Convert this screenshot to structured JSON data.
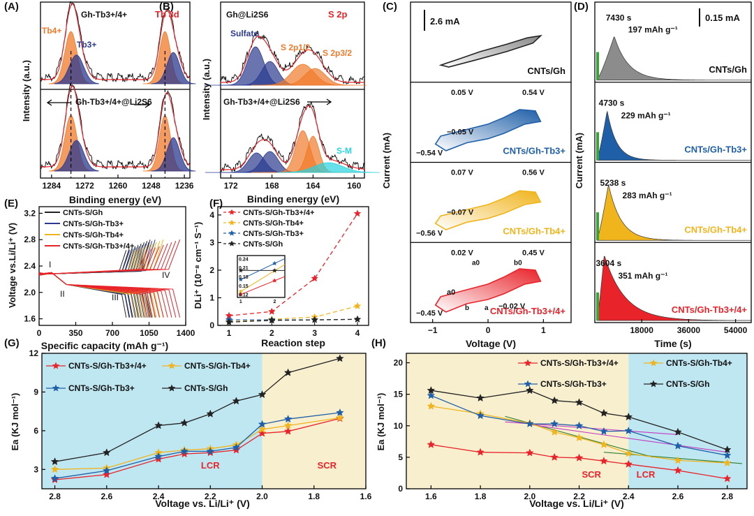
{
  "colors": {
    "red": "#e8232a",
    "blue": "#1f5fa8",
    "navy": "#2b3a8f",
    "gold": "#f0b41c",
    "black": "#222222",
    "orange": "#f07a2a",
    "cyan": "#27d3e0",
    "lcr": "#bfe7f1",
    "scr": "#f8efcf",
    "green": "#3aa33a"
  },
  "chart_data": [
    {
      "panel": "A",
      "type": "line",
      "title": "Tb 3d",
      "top_label": "Gh-Tb3+/4+",
      "bottom_label": "Gh-Tb3+/4+@Li2S6",
      "peak_labels": [
        "Tb4+",
        "Tb3+"
      ],
      "xlabel": "Binding energy  (eV)",
      "ylabel": "Intensity (a.u.)",
      "xlim": [
        1288,
        1234
      ],
      "xticks": [
        "1284",
        "1272",
        "1260",
        "1248",
        "1236"
      ],
      "xtick_values": [
        1284,
        1272,
        1260,
        1248,
        1236
      ]
    },
    {
      "panel": "B",
      "type": "line",
      "title": "S 2p",
      "top_label": "Gh@Li2S6",
      "bottom_label": "Gh-Tb3+/4+@Li2S6",
      "peak_labels": [
        "Sulfate",
        "S 2p1/2",
        "S 2p3/2",
        "S-M"
      ],
      "xlabel": "Binding energy (eV)",
      "ylabel": "Intensity (a.u.)",
      "xlim": [
        173,
        159
      ],
      "xticks": [
        "172",
        "168",
        "164",
        "160"
      ],
      "xtick_values": [
        172,
        168,
        164,
        160
      ]
    },
    {
      "panel": "C",
      "type": "line",
      "scale": "2.6 mA",
      "xlabel": "Voltage (V)",
      "ylabel": "Current (mA)",
      "xlim": [
        -1.4,
        1.5
      ],
      "xticks": [
        "−1",
        "0",
        "1"
      ],
      "xtick_values": [
        -1,
        0,
        1
      ],
      "subpanels": [
        {
          "name": "CNTs/Gh",
          "annotations": []
        },
        {
          "name": "CNTs/Gh-Tb3+",
          "annotations": [
            "0.05 V",
            "0.54 V",
            "−0.05 V",
            "−0.54 V"
          ]
        },
        {
          "name": "CNTs/Gh-Tb4+",
          "annotations": [
            "0.07 V",
            "0.56 V",
            "−0.07 V",
            "−0.56 V"
          ]
        },
        {
          "name": "CNTs/Gh-Tb3+/4+",
          "annotations": [
            "0.02 V",
            "0.45 V",
            "a0",
            "b0",
            "b",
            "a",
            "−0.02 V",
            "−0.45 V"
          ]
        }
      ]
    },
    {
      "panel": "D",
      "type": "area",
      "scale": "0.15 mA",
      "xlabel": "Time (s)",
      "ylabel": "Current (mA)",
      "xlim": [
        0,
        60000
      ],
      "xticks": [
        "18000",
        "36000",
        "54000"
      ],
      "xtick_values": [
        18000,
        36000,
        54000
      ],
      "subpanels": [
        {
          "name": "CNTs/Gh",
          "peak_time": "7430 s",
          "capacity": "197 mAh g⁻¹",
          "peak_s": 7430,
          "rel_height": 0.55,
          "width": 0.09
        },
        {
          "name": "CNTs/Gh-Tb3+",
          "peak_time": "4730 s",
          "capacity": "229 mAh g⁻¹",
          "peak_s": 4730,
          "rel_height": 0.62,
          "width": 0.06
        },
        {
          "name": "CNTs/Gh-Tb4+",
          "peak_time": "5238 s",
          "capacity": "283 mAh g⁻¹",
          "peak_s": 5238,
          "rel_height": 0.7,
          "width": 0.08
        },
        {
          "name": "CNTs/Gh-Tb3+/4+",
          "peak_time": "3604 s",
          "capacity": "351 mAh g⁻¹",
          "peak_s": 3604,
          "rel_height": 0.82,
          "width": 0.13
        }
      ]
    },
    {
      "panel": "E",
      "type": "line",
      "xlabel": "Specific capacity (mAh g⁻¹)",
      "ylabel": "Voltage vs.Li/Li⁺ (V)",
      "xlim": [
        0,
        1400
      ],
      "ylim": [
        1.5,
        3.3
      ],
      "xticks": [
        "0",
        "350",
        "700",
        "1050",
        "1400"
      ],
      "xtick_values": [
        0,
        350,
        700,
        1050,
        1400
      ],
      "yticks": [
        "1.6",
        "2.0",
        "2.4",
        "2.8",
        "3.2"
      ],
      "ytick_values": [
        1.6,
        2.0,
        2.4,
        2.8,
        3.2
      ],
      "region_labels": [
        "I",
        "II",
        "III",
        "IV"
      ],
      "series": [
        {
          "name": "CNTs-S/Gh",
          "cap": 1060
        },
        {
          "name": "CNTs-S/Gh-Tb3+",
          "cap": 1110
        },
        {
          "name": "CNTs-S/Gh-Tb4+",
          "cap": 1190
        },
        {
          "name": "CNTs-S/Gh-Tb3+/4+",
          "cap": 1350
        }
      ]
    },
    {
      "panel": "F",
      "type": "line",
      "xlabel": "Reaction step",
      "ylabel": "DLi⁺ (10⁻⁸ cm⁻¹ S⁻¹)",
      "categories": [
        "1",
        "2",
        "3",
        "4"
      ],
      "ylim": [
        0,
        4.3
      ],
      "yticks": [
        "0",
        "1",
        "2",
        "3",
        "4"
      ],
      "ytick_values": [
        0,
        1,
        2,
        3,
        4
      ],
      "series": [
        {
          "name": "CNTs-S/Gh-Tb3+/4+",
          "values": [
            0.35,
            0.5,
            1.7,
            4.05
          ]
        },
        {
          "name": "CNTs-S/Gh-Tb4+",
          "values": [
            0.13,
            0.22,
            0.3,
            0.7
          ]
        },
        {
          "name": "CNTs-S/Gh-Tb3+",
          "values": [
            0.2,
            0.2,
            0.2,
            0.22
          ]
        },
        {
          "name": "CNTs-S/Gh",
          "values": [
            0.12,
            0.18,
            0.2,
            0.22
          ]
        }
      ],
      "inset": {
        "yticks": [
          "0.12",
          "0.15",
          "0.18",
          "0.21",
          "0.24"
        ],
        "ytick_values": [
          0.12,
          0.15,
          0.18,
          0.21,
          0.24
        ],
        "xticks": [
          "1",
          "2"
        ],
        "xtick_values": [
          1,
          2
        ]
      }
    },
    {
      "panel": "G",
      "type": "line",
      "xlabel": "Voltage vs. Li/Li⁺ (V)",
      "ylabel": "Ea (KJ mol⁻¹)",
      "xlim": [
        2.85,
        1.6
      ],
      "ylim": [
        1.5,
        12
      ],
      "xticks": [
        "2.8",
        "2.6",
        "2.4",
        "2.2",
        "2.0",
        "1.8",
        "1.6"
      ],
      "xtick_values": [
        2.8,
        2.6,
        2.4,
        2.2,
        2.0,
        1.8,
        1.6
      ],
      "yticks": [
        "3",
        "6",
        "9",
        "12"
      ],
      "ytick_values": [
        3,
        6,
        9,
        12
      ],
      "regions": [
        {
          "label": "LCR"
        },
        {
          "label": "SCR"
        }
      ],
      "x": [
        2.8,
        2.6,
        2.4,
        2.3,
        2.2,
        2.1,
        2.0,
        1.9,
        1.7
      ],
      "series": [
        {
          "name": "CNTs-S/Gh-Tb3+/4+",
          "values": [
            2.2,
            2.6,
            3.8,
            4.2,
            4.3,
            4.5,
            5.8,
            5.95,
            6.95
          ]
        },
        {
          "name": "CNTs-S/Gh-Tb4+",
          "values": [
            3.0,
            3.1,
            4.3,
            4.5,
            4.6,
            4.9,
            6.1,
            6.4,
            7.0
          ]
        },
        {
          "name": "CNTs-S/Gh-Tb3+",
          "values": [
            2.3,
            2.9,
            4.0,
            4.4,
            4.4,
            4.7,
            6.5,
            6.9,
            7.4
          ]
        },
        {
          "name": "CNTs-S/Gh",
          "values": [
            3.6,
            4.3,
            6.4,
            6.6,
            7.3,
            8.3,
            8.8,
            10.5,
            11.6
          ]
        }
      ]
    },
    {
      "panel": "H",
      "type": "line",
      "xlabel": "Voltage vs. Li/Li⁺ (V)",
      "ylabel": "Ea (KJ mol⁻¹)",
      "xlim": [
        1.5,
        2.88
      ],
      "ylim": [
        0,
        21.5
      ],
      "xticks": [
        "1.6",
        "1.8",
        "2.0",
        "2.2",
        "2.4",
        "2.6",
        "2.8"
      ],
      "xtick_values": [
        1.6,
        1.8,
        2.0,
        2.2,
        2.4,
        2.6,
        2.8
      ],
      "yticks": [
        "0",
        "5",
        "10",
        "15",
        "20"
      ],
      "ytick_values": [
        0,
        5,
        10,
        15,
        20
      ],
      "regions": [
        {
          "label": "SCR"
        },
        {
          "label": "LCR"
        }
      ],
      "x": [
        1.6,
        1.8,
        2.0,
        2.1,
        2.2,
        2.3,
        2.4,
        2.6,
        2.8
      ],
      "series": [
        {
          "name": "CNTs-S/Gh-Tb3+/4+",
          "values": [
            7.0,
            5.8,
            5.7,
            5.0,
            4.9,
            4.4,
            3.9,
            2.9,
            1.6
          ]
        },
        {
          "name": "CNTs-S/Gh-Tb4+",
          "values": [
            13.1,
            11.9,
            10.4,
            9.0,
            8.1,
            7.0,
            5.6,
            4.5,
            4.1
          ]
        },
        {
          "name": "CNTs-S/Gh-Tb3+",
          "values": [
            14.8,
            11.6,
            10.3,
            10.3,
            10.0,
            9.1,
            9.2,
            6.8,
            5.3
          ]
        },
        {
          "name": "CNTs-S/Gh",
          "values": [
            15.6,
            14.4,
            15.6,
            14.0,
            13.7,
            12.0,
            11.4,
            9.0,
            6.2
          ]
        }
      ]
    }
  ],
  "panel_letters": [
    "(A)",
    "(B)",
    "(C)",
    "(D)",
    "(E)",
    "(F)",
    "(G)",
    "(H)"
  ]
}
